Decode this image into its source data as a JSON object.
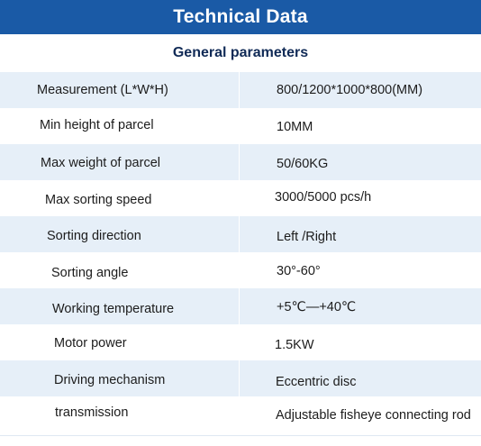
{
  "header": {
    "title": "Technical Data"
  },
  "section": {
    "title": "General parameters"
  },
  "rows": [
    {
      "label": "Measurement (L*W*H)",
      "value": "800/1200*1000*800(MM)"
    },
    {
      "label": "Min height of parcel",
      "value": "10MM"
    },
    {
      "label": "Max weight of parcel",
      "value": "50/60KG"
    },
    {
      "label": "Max sorting speed",
      "value": "3000/5000 pcs/h"
    },
    {
      "label": "Sorting direction",
      "value": "Left /Right"
    },
    {
      "label": "Sorting angle",
      "value": "30°-60°"
    },
    {
      "label": "Working temperature",
      "value": "+5℃—+40℃"
    },
    {
      "label": "Motor power",
      "value": "1.5KW"
    },
    {
      "label": "Driving mechanism",
      "value": "Eccentric disc"
    },
    {
      "label": "transmission",
      "value": "Adjustable fisheye connecting rod"
    }
  ],
  "colors": {
    "header_bg": "#1a5aa6",
    "header_text": "#ffffff",
    "section_text": "#102a56",
    "row_shade": "#e6eff8"
  }
}
